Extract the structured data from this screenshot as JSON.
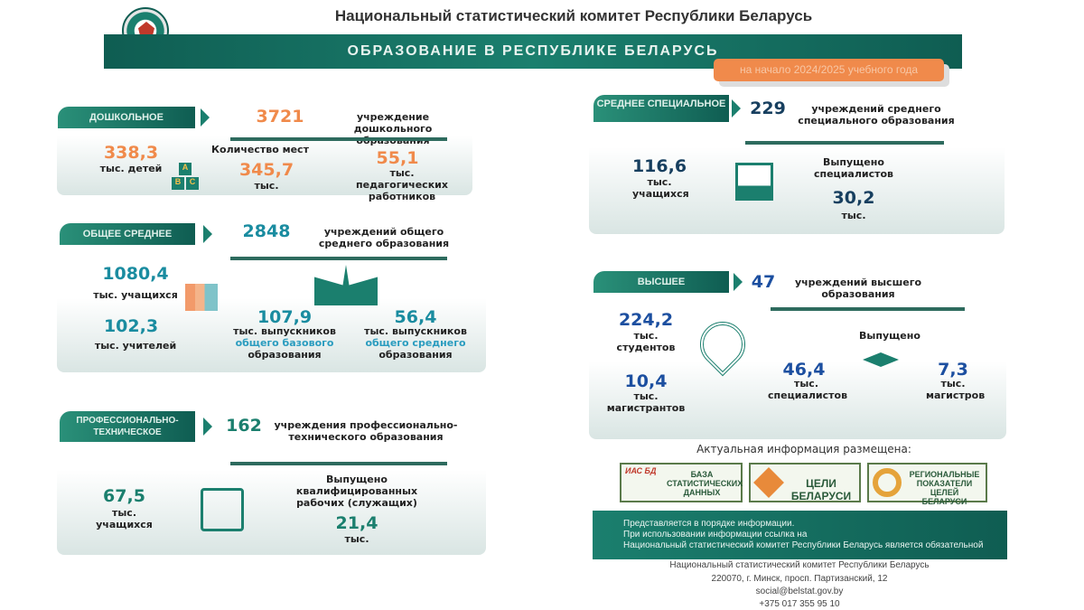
{
  "header": {
    "title": "Национальный статистический комитет Республики Беларусь",
    "banner": "ОБРАЗОВАНИЕ В РЕСПУБЛИКЕ БЕЛАРУСЬ",
    "date_badge": "на начало 2024/2025 учебного года"
  },
  "preschool": {
    "label": "ДОШКОЛЬНОЕ",
    "institutions": "3721",
    "institutions_text": "учреждение дошкольного образования",
    "children": "338,3",
    "children_unit": "тыс. детей",
    "places_title": "Количество мест",
    "places": "345,7",
    "places_unit": "тыс.",
    "teachers": "55,1",
    "teachers_unit": "тыс. педагогических работников",
    "blocks": [
      "A",
      "B",
      "C"
    ]
  },
  "general": {
    "label": "ОБЩЕЕ СРЕДНЕЕ",
    "institutions": "2848",
    "institutions_text": "учреждений общего среднего образования",
    "pupils": "1080,4",
    "pupils_unit": "тыс. учащихся",
    "teachers": "102,3",
    "teachers_unit": "тыс. учителей",
    "grad_basic": "107,9",
    "grad_basic_l1": "тыс. выпускников",
    "grad_basic_l2": "общего базового",
    "grad_basic_l3": "образования",
    "grad_sec": "56,4",
    "grad_sec_l1": "тыс. выпускников",
    "grad_sec_l2": "общего среднего",
    "grad_sec_l3": "образования"
  },
  "vocational": {
    "label": "ПРОФЕССИОНАЛЬНО-ТЕХНИЧЕСКОЕ",
    "institutions": "162",
    "institutions_text": "учреждения профессионально-технического образования",
    "students": "67,5",
    "students_unit": "тыс. учащихся",
    "released_title": "Выпущено квалифицированных рабочих (служащих)",
    "released": "21,4",
    "released_unit": "тыс."
  },
  "specialized": {
    "label": "СРЕДНЕЕ СПЕЦИАЛЬНОЕ",
    "institutions": "229",
    "institutions_text": "учреждений среднего специального образования",
    "students": "116,6",
    "students_unit": "тыс. учащихся",
    "released_title": "Выпущено специалистов",
    "released": "30,2",
    "released_unit": "тыс."
  },
  "higher": {
    "label": "ВЫСШЕЕ",
    "institutions": "47",
    "institutions_text": "учреждений высшего образования",
    "students": "224,2",
    "students_unit": "тыс. студентов",
    "masters_students": "10,4",
    "masters_students_unit": "тыс. магистрантов",
    "released_title": "Выпущено",
    "specialists": "46,4",
    "specialists_unit": "тыс. специалистов",
    "masters": "7,3",
    "masters_unit": "тыс. магистров"
  },
  "links": {
    "title": "Актуальная информация размещена:",
    "items": [
      {
        "tag": "ИАС БД",
        "text": "БАЗА СТАТИСТИЧЕСКИХ ДАННЫХ"
      },
      {
        "text": "ЦЕЛИ БЕЛАРУСИ"
      },
      {
        "text": "РЕГИОНАЛЬНЫЕ ПОКАЗАТЕЛИ ЦЕЛЕЙ БЕЛАРУСИ"
      }
    ]
  },
  "footer": {
    "note1": "Представляется в порядке информации.",
    "note2": "При использовании информации ссылка на",
    "note3": "Национальный статистический комитет Республики Беларусь является обязательной",
    "org": "Национальный статистический комитет Республики Беларусь",
    "address": "220070, г. Минск, просп. Партизанский, 12",
    "email": "social@belstat.gov.by",
    "phone": "+375 017 355 95 10"
  }
}
